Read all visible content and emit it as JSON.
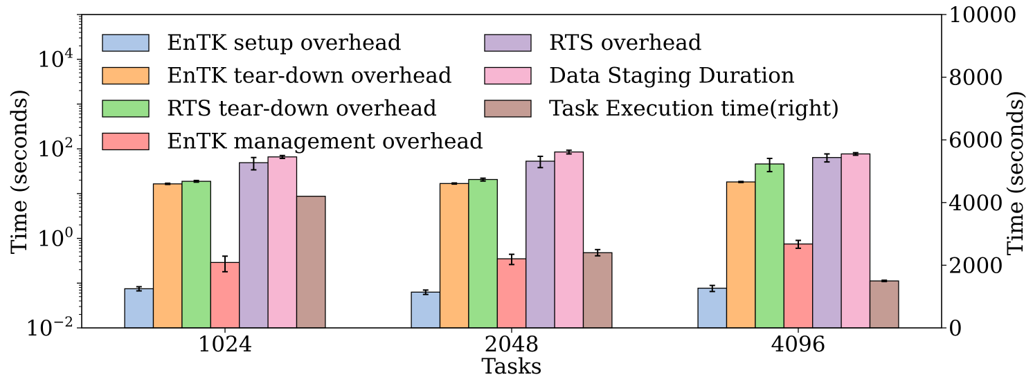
{
  "chart_data": {
    "type": "bar",
    "xlabel": "Tasks",
    "ylabel_left": "Time (seconds)",
    "ylabel_right": "Time (seconds)",
    "categories": [
      "1024",
      "2048",
      "4096"
    ],
    "left_axis": {
      "scale": "log",
      "ylim": [
        0.01,
        100000
      ],
      "ticks": [
        {
          "value": 0.01,
          "base": "10",
          "exp": "−2"
        },
        {
          "value": 1,
          "base": "10",
          "exp": "0"
        },
        {
          "value": 100,
          "base": "10",
          "exp": "2"
        },
        {
          "value": 10000,
          "base": "10",
          "exp": "4"
        }
      ]
    },
    "right_axis": {
      "scale": "linear",
      "ylim": [
        0,
        10000
      ],
      "ticks": [
        "0",
        "2000",
        "4000",
        "6000",
        "8000",
        "10000"
      ]
    },
    "series": [
      {
        "name": "EnTK setup overhead",
        "color": "#aec7e8",
        "axis": "left",
        "values": [
          0.075,
          0.063,
          0.077
        ],
        "errors": [
          0.008,
          0.007,
          0.012
        ]
      },
      {
        "name": "EnTK tear-down overhead",
        "color": "#ffbb78",
        "axis": "left",
        "values": [
          16.5,
          16.8,
          18.2
        ],
        "errors": [
          0.5,
          0.5,
          0.5
        ]
      },
      {
        "name": "RTS tear-down overhead",
        "color": "#98df8a",
        "axis": "left",
        "values": [
          18.8,
          20.6,
          46
        ],
        "errors": [
          0.8,
          1.5,
          15
        ]
      },
      {
        "name": "EnTK management overhead",
        "color": "#ff9896",
        "axis": "left",
        "values": [
          0.29,
          0.35,
          0.75
        ],
        "errors": [
          0.11,
          0.09,
          0.15
        ]
      },
      {
        "name": "RTS overhead",
        "color": "#c5b0d5",
        "axis": "left",
        "values": [
          49,
          53,
          64
        ],
        "errors": [
          15,
          15,
          13
        ]
      },
      {
        "name": "Data Staging Duration",
        "color": "#f7b6d2",
        "axis": "left",
        "values": [
          66,
          85,
          77
        ],
        "errors": [
          5,
          8,
          5
        ]
      },
      {
        "name": "Task Execution time(right)",
        "color": "#c49c94",
        "axis": "right",
        "values": [
          4200,
          2400,
          1500
        ],
        "errors": [
          0,
          100,
          20
        ]
      }
    ],
    "legend": {
      "placement": "top-left",
      "columns": 2
    },
    "grid": false
  }
}
